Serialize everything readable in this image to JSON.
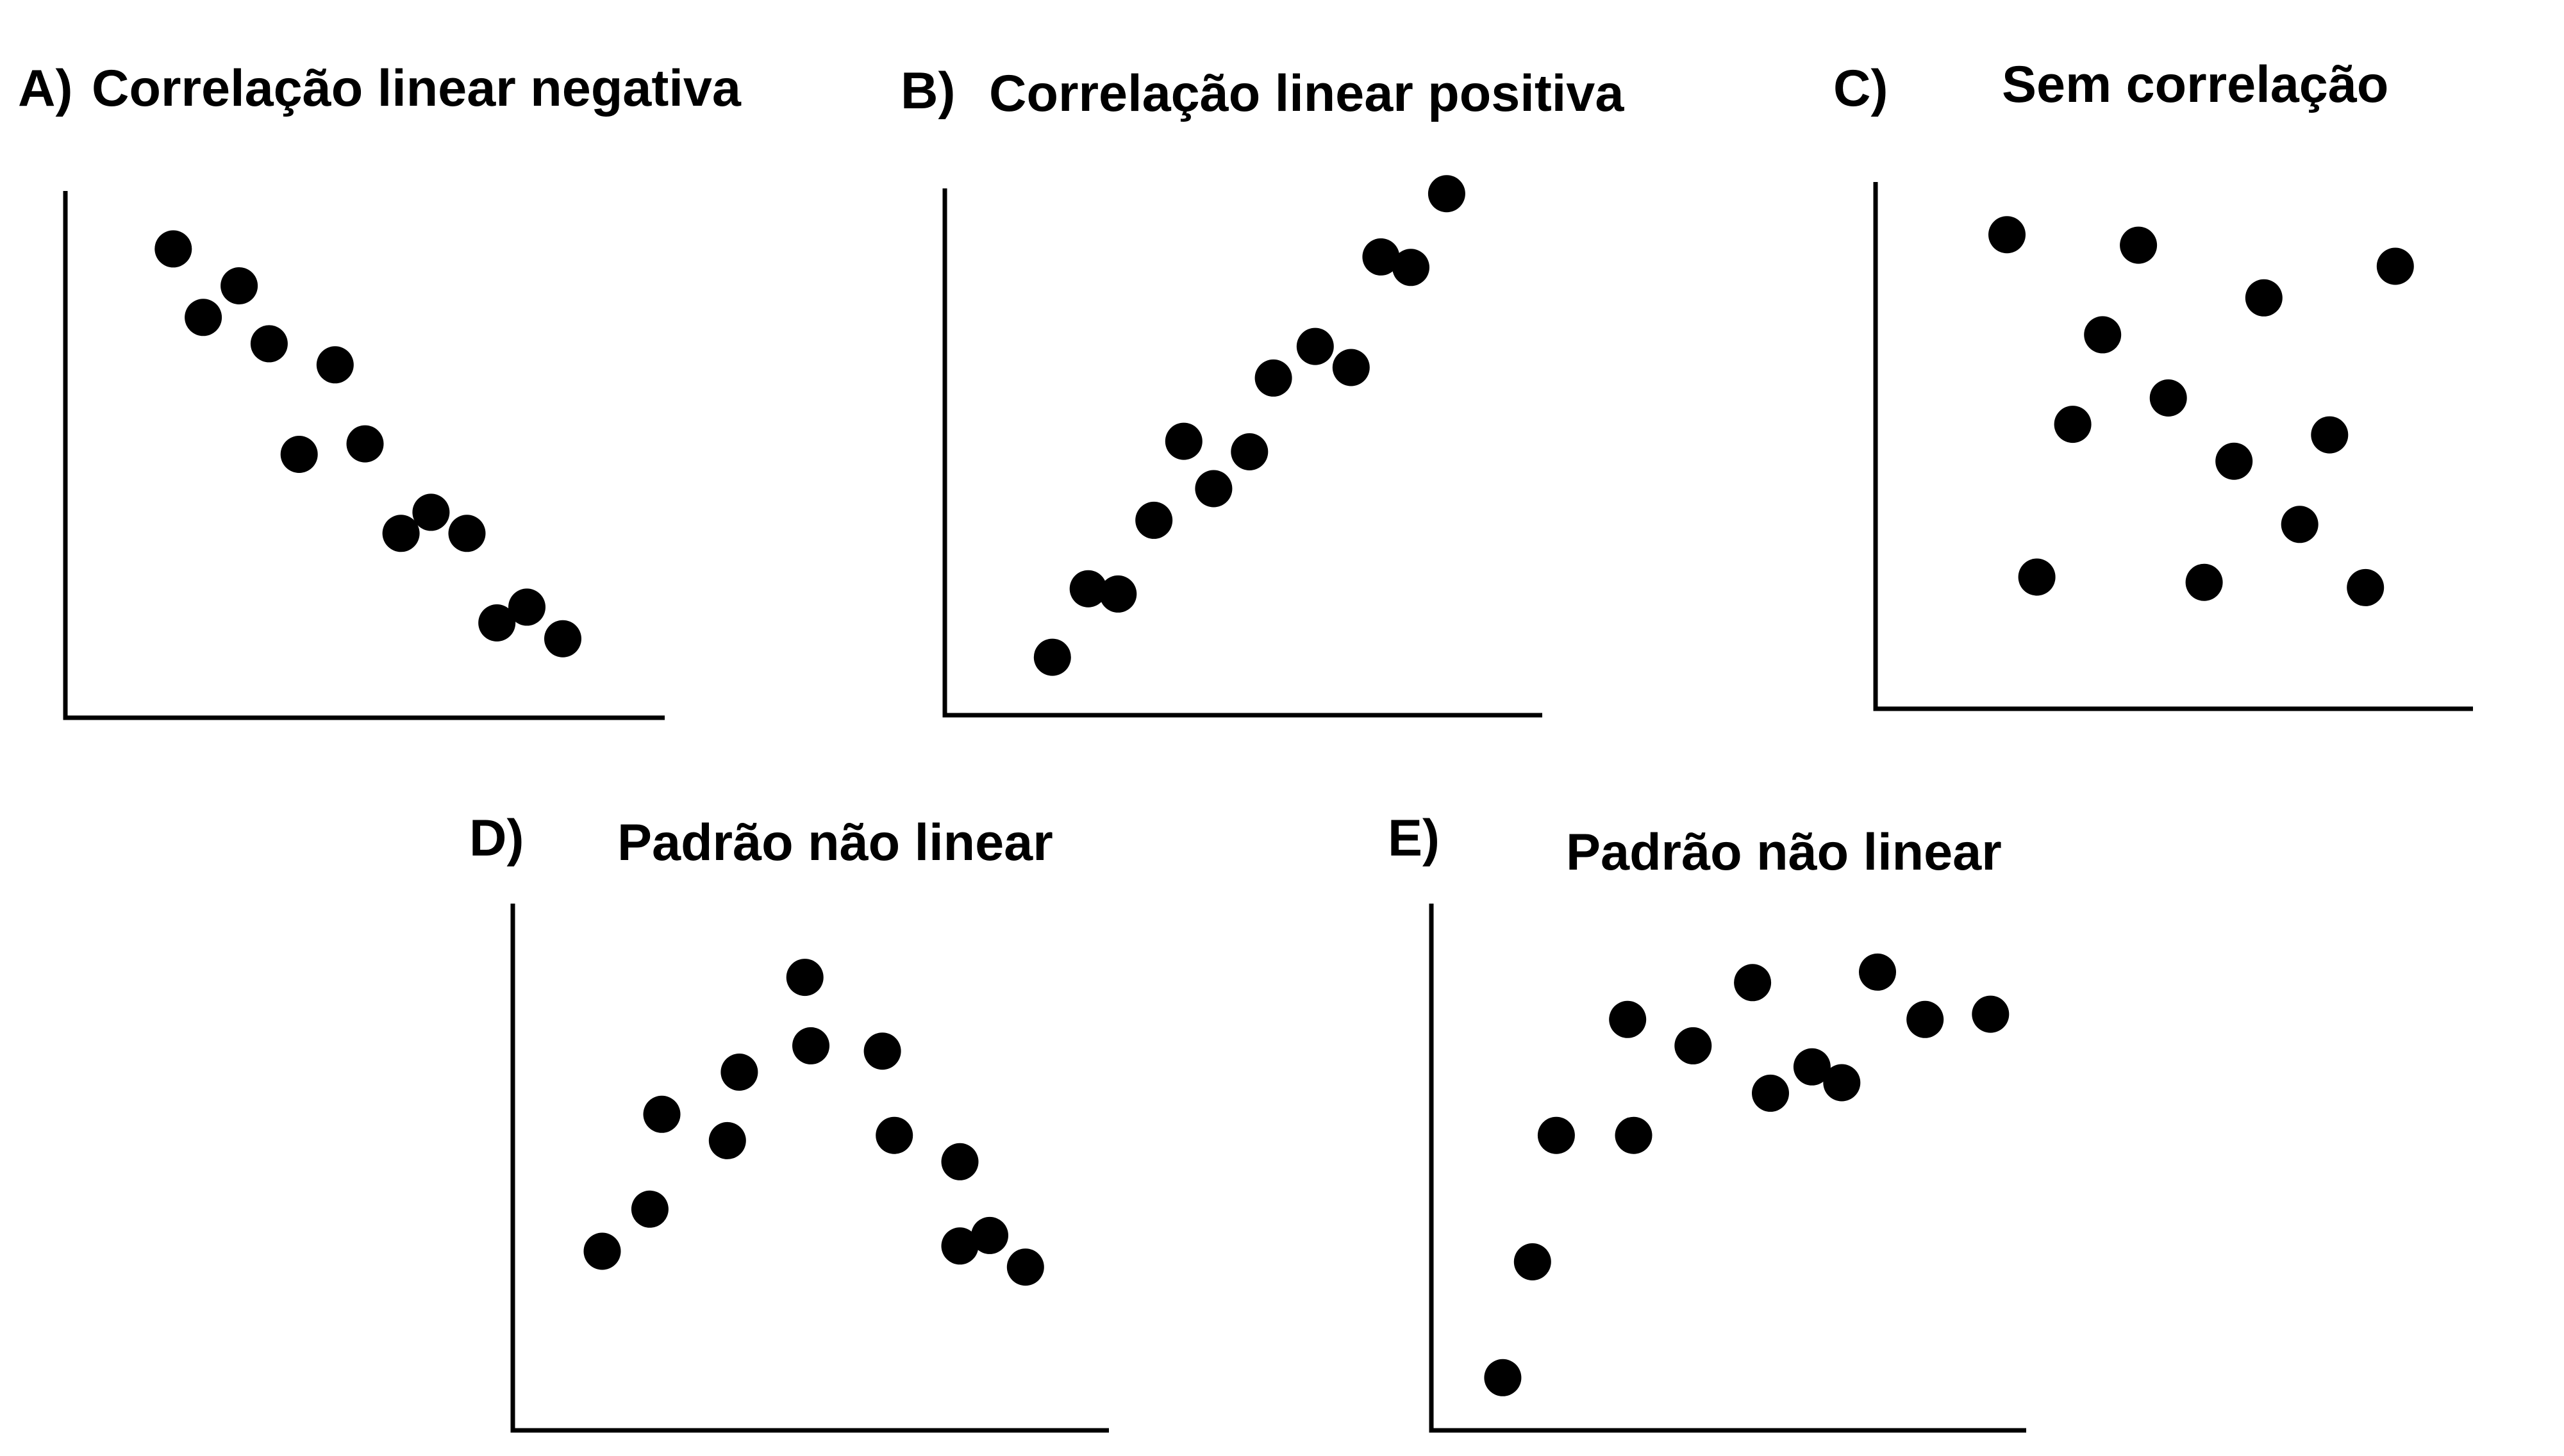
{
  "chart_data": [
    {
      "type": "scatter",
      "label": "A)",
      "title": "Correlação linear negativa",
      "xlabel": "",
      "ylabel": "",
      "xlim": [
        0,
        100
      ],
      "ylim": [
        0,
        100
      ],
      "grid": false,
      "points": [
        {
          "x": 18,
          "y": 89
        },
        {
          "x": 23,
          "y": 76
        },
        {
          "x": 29,
          "y": 82
        },
        {
          "x": 34,
          "y": 71
        },
        {
          "x": 45,
          "y": 67
        },
        {
          "x": 39,
          "y": 50
        },
        {
          "x": 50,
          "y": 52
        },
        {
          "x": 56,
          "y": 35
        },
        {
          "x": 61,
          "y": 39
        },
        {
          "x": 67,
          "y": 35
        },
        {
          "x": 72,
          "y": 18
        },
        {
          "x": 77,
          "y": 21
        },
        {
          "x": 83,
          "y": 15
        }
      ]
    },
    {
      "type": "scatter",
      "label": "B)",
      "title": "Correlação linear positiva",
      "xlabel": "",
      "ylabel": "",
      "xlim": [
        0,
        100
      ],
      "ylim": [
        0,
        100
      ],
      "grid": false,
      "points": [
        {
          "x": 18,
          "y": 11
        },
        {
          "x": 24,
          "y": 24
        },
        {
          "x": 29,
          "y": 23
        },
        {
          "x": 35,
          "y": 37
        },
        {
          "x": 40,
          "y": 52
        },
        {
          "x": 45,
          "y": 43
        },
        {
          "x": 51,
          "y": 50
        },
        {
          "x": 55,
          "y": 64
        },
        {
          "x": 62,
          "y": 70
        },
        {
          "x": 68,
          "y": 66
        },
        {
          "x": 73,
          "y": 87
        },
        {
          "x": 78,
          "y": 85
        },
        {
          "x": 84,
          "y": 99
        }
      ]
    },
    {
      "type": "scatter",
      "label": "C)",
      "title": "Sem correlação",
      "xlabel": "",
      "ylabel": "",
      "xlim": [
        0,
        100
      ],
      "ylim": [
        0,
        100
      ],
      "grid": false,
      "points": [
        {
          "x": 22,
          "y": 90
        },
        {
          "x": 44,
          "y": 88
        },
        {
          "x": 87,
          "y": 84
        },
        {
          "x": 65,
          "y": 78
        },
        {
          "x": 38,
          "y": 71
        },
        {
          "x": 49,
          "y": 59
        },
        {
          "x": 33,
          "y": 54
        },
        {
          "x": 76,
          "y": 52
        },
        {
          "x": 60,
          "y": 47
        },
        {
          "x": 71,
          "y": 35
        },
        {
          "x": 27,
          "y": 25
        },
        {
          "x": 55,
          "y": 24
        },
        {
          "x": 82,
          "y": 23
        }
      ]
    },
    {
      "type": "scatter",
      "label": "D)",
      "title": "Padrão não linear",
      "xlabel": "",
      "ylabel": "",
      "xlim": [
        0,
        100
      ],
      "ylim": [
        0,
        100
      ],
      "grid": false,
      "points": [
        {
          "x": 15,
          "y": 34
        },
        {
          "x": 23,
          "y": 42
        },
        {
          "x": 25,
          "y": 60
        },
        {
          "x": 36,
          "y": 55
        },
        {
          "x": 38,
          "y": 68
        },
        {
          "x": 49,
          "y": 86
        },
        {
          "x": 50,
          "y": 73
        },
        {
          "x": 62,
          "y": 72
        },
        {
          "x": 64,
          "y": 56
        },
        {
          "x": 75,
          "y": 51
        },
        {
          "x": 75,
          "y": 35
        },
        {
          "x": 80,
          "y": 37
        },
        {
          "x": 86,
          "y": 31
        }
      ]
    },
    {
      "type": "scatter",
      "label": "E)",
      "title": "Padrão não linear",
      "xlabel": "",
      "ylabel": "",
      "xlim": [
        0,
        100
      ],
      "ylim": [
        0,
        100
      ],
      "grid": false,
      "points": [
        {
          "x": 12,
          "y": 10
        },
        {
          "x": 17,
          "y": 32
        },
        {
          "x": 21,
          "y": 56
        },
        {
          "x": 34,
          "y": 56
        },
        {
          "x": 33,
          "y": 78
        },
        {
          "x": 44,
          "y": 73
        },
        {
          "x": 54,
          "y": 85
        },
        {
          "x": 57,
          "y": 64
        },
        {
          "x": 64,
          "y": 69
        },
        {
          "x": 69,
          "y": 66
        },
        {
          "x": 75,
          "y": 87
        },
        {
          "x": 83,
          "y": 78
        },
        {
          "x": 94,
          "y": 79
        }
      ]
    }
  ]
}
